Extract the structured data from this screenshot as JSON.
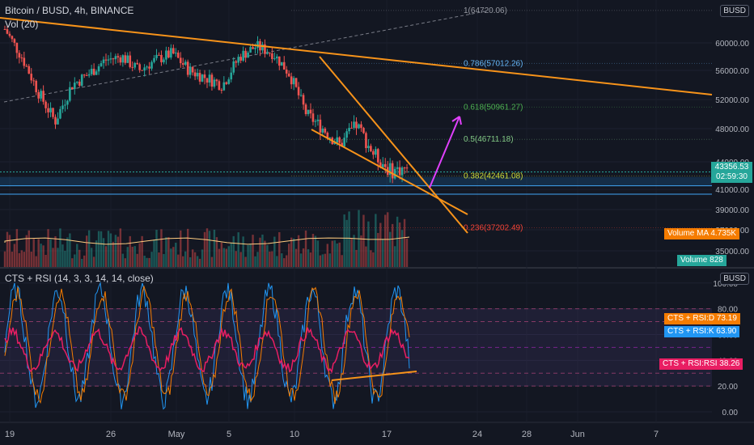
{
  "header": {
    "main_title": "Bitcoin / BUSD, 4h, BINANCE",
    "vol_label": "Vol (20)",
    "indicator_title": "CTS + RSI (14, 3, 3, 14, 14, close)",
    "currency_badge": "BUSD",
    "currency_badge2": "BUSD"
  },
  "price_axis": [
    "60000.00",
    "56000.00",
    "52000.00",
    "48000.00",
    "44000.00",
    "41000.00",
    "39000.00",
    "37000.00",
    "35000.00"
  ],
  "price_axis_top": "6",
  "indicator_axis": [
    "100.00",
    "80.00",
    "60.00",
    "40.00",
    "20.00",
    "0.00"
  ],
  "time_axis": [
    "19",
    "26",
    "May",
    "5",
    "10",
    "17",
    "24",
    "28",
    "Jun",
    "7"
  ],
  "fib_labels": [
    {
      "text": "1(64720.06)",
      "color": "#9598a1"
    },
    {
      "text": "0.786(57012.26)",
      "color": "#64b5f6"
    },
    {
      "text": "0.618(50961.27)",
      "color": "#4caf50"
    },
    {
      "text": "0.5(46711.18)",
      "color": "#81c784"
    },
    {
      "text": "0.382(42461.08)",
      "color": "#cddc39"
    },
    {
      "text": "0.236(37202.49)",
      "color": "#f44336"
    }
  ],
  "last_price": {
    "price": "43356.53",
    "countdown": "02:59:30",
    "color": "#26a69a"
  },
  "volume_ma_tag": {
    "label": "Volume MA",
    "value": "4.735K",
    "color": "#f57c00"
  },
  "volume_tag": {
    "label": "Volume",
    "value": "828",
    "color": "#26a69a"
  },
  "cts_d_tag": {
    "label": "CTS + RSI:D",
    "value": "73.19",
    "color": "#f57c00"
  },
  "cts_k_tag": {
    "label": "CTS + RSI:K",
    "value": "63.90",
    "color": "#2196f3"
  },
  "cts_rsi_tag": {
    "label": "CTS + RSI:RSI",
    "value": "38.26",
    "color": "#e91e63"
  },
  "colors": {
    "up": "#26a69a",
    "down": "#ef5350",
    "trend": "#f7931a",
    "arrow": "#e040fb"
  },
  "chart_data": {
    "type": "candlestick",
    "symbol": "BTC/BUSD",
    "interval": "4h",
    "exchange": "BINANCE",
    "x_labels": [
      "19",
      "26",
      "May",
      "5",
      "10",
      "17",
      "24",
      "28",
      "Jun",
      "7"
    ],
    "approx_closes": [
      62000,
      58000,
      53000,
      49000,
      54000,
      55500,
      57500,
      58000,
      56000,
      57500,
      58500,
      56000,
      55000,
      54000,
      58000,
      59500,
      58500,
      55500,
      50000,
      48000,
      46000,
      48500,
      45000,
      43000,
      43356.53
    ],
    "fibonacci": [
      {
        "level": 1,
        "price": 64720.06
      },
      {
        "level": 0.786,
        "price": 57012.26
      },
      {
        "level": 0.618,
        "price": 50961.27
      },
      {
        "level": 0.5,
        "price": 46711.18
      },
      {
        "level": 0.382,
        "price": 42461.08
      },
      {
        "level": 0.236,
        "price": 37202.49
      }
    ],
    "last_price": 43356.53,
    "volume_ma": 4735,
    "last_volume": 828,
    "indicator": {
      "name": "CTS + RSI",
      "D": 73.19,
      "K": 63.9,
      "RSI": 38.26,
      "ylim": [
        0,
        100
      ]
    }
  }
}
